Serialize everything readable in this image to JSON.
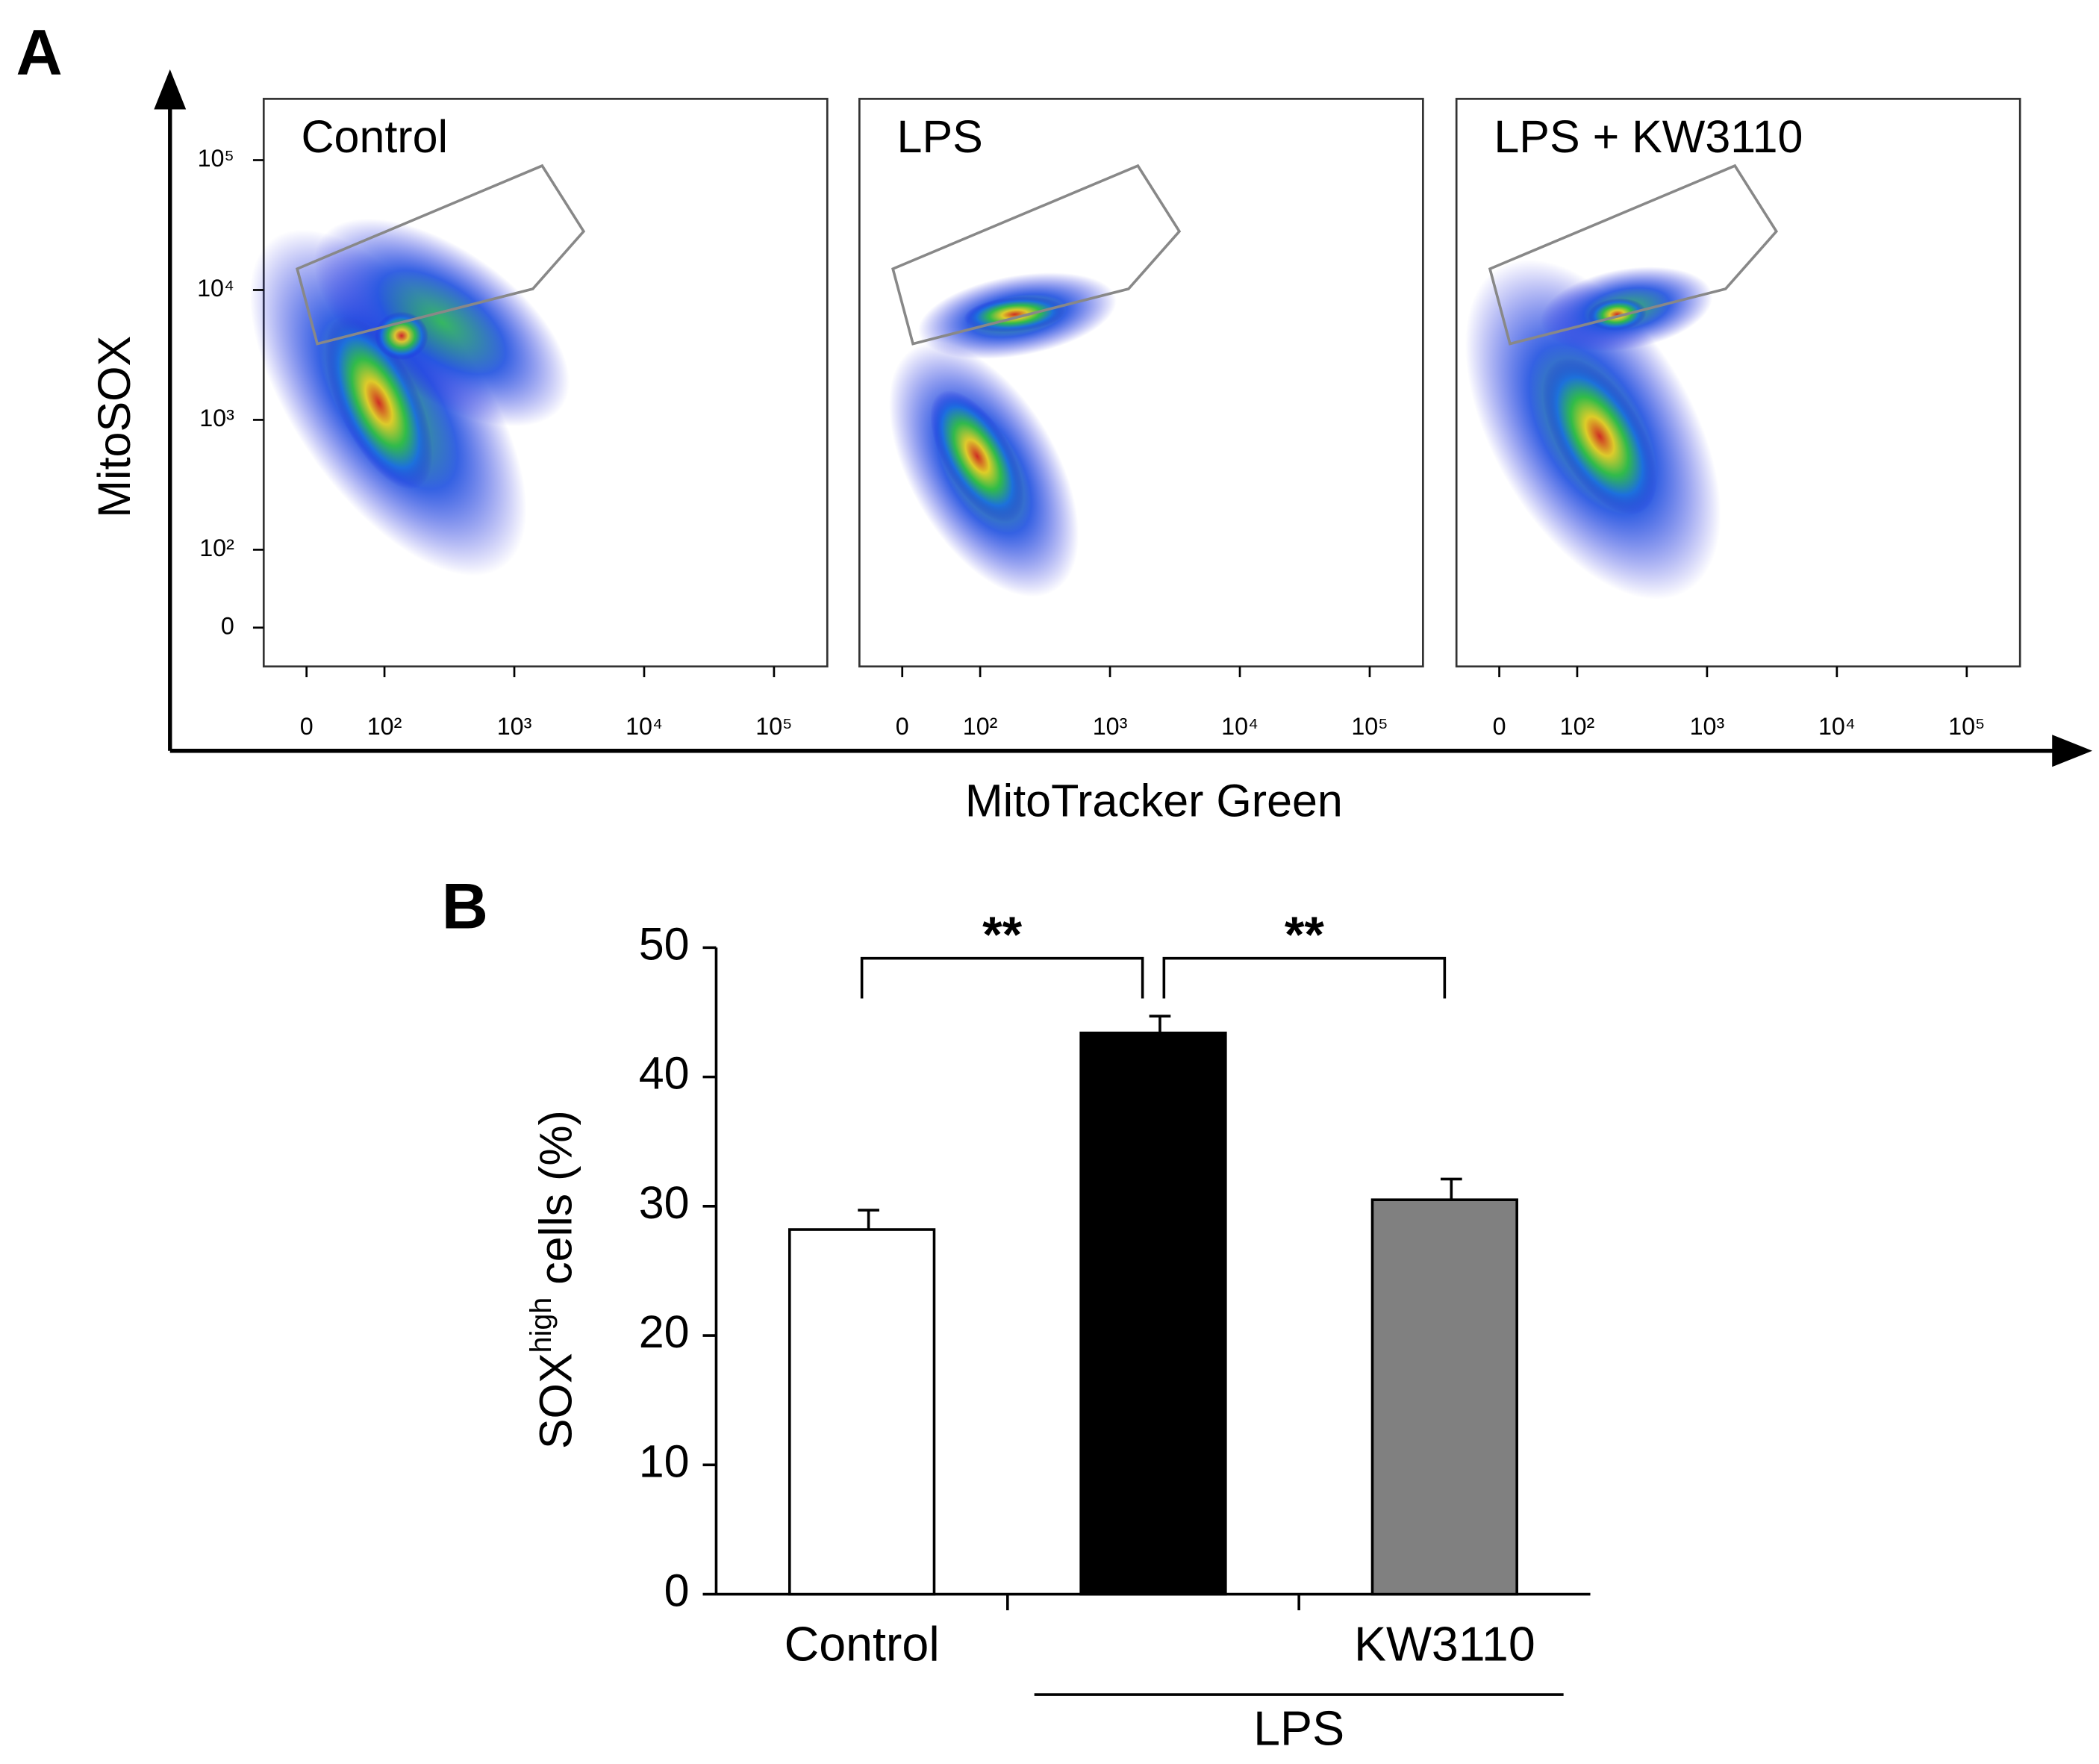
{
  "chart_data": [
    {
      "type": "flow",
      "panel_label": "A",
      "y_label": "MitoSOX",
      "x_label": "MitoTracker Green",
      "panels": [
        "Control",
        "LPS",
        "LPS + KW3110"
      ],
      "xticks": [
        {
          "value": 0,
          "label": "0"
        },
        {
          "value": 100,
          "label": "10²"
        },
        {
          "value": 1000,
          "label": "10³"
        },
        {
          "value": 10000,
          "label": "10⁴"
        },
        {
          "value": 100000,
          "label": "10⁵"
        }
      ],
      "yticks": [
        {
          "value": 0,
          "label": "0"
        },
        {
          "value": 100,
          "label": "10²"
        },
        {
          "value": 1000,
          "label": "10³"
        },
        {
          "value": 10000,
          "label": "10⁴"
        },
        {
          "value": 100000,
          "label": "10⁵"
        }
      ],
      "scale": "biexponential"
    },
    {
      "type": "bar",
      "panel_label": "B",
      "y_label": {
        "text": "SOX",
        "superscript": "high",
        "suffix": " cells (%)"
      },
      "categories": [
        "Control",
        null,
        "KW3110"
      ],
      "values": [
        28.2,
        43.4,
        30.5
      ],
      "errors": [
        1.5,
        1.3,
        1.6
      ],
      "colors": [
        "#ffffff",
        "#000000",
        "#808080"
      ],
      "ylim": [
        0,
        50
      ],
      "yticks": [
        0,
        10,
        20,
        30,
        40,
        50
      ],
      "group": {
        "label": "LPS",
        "from": 1,
        "to": 2
      },
      "annotations": [
        {
          "text": "**",
          "from": 0,
          "to": 1
        },
        {
          "text": "**",
          "from": 1,
          "to": 2
        }
      ]
    }
  ]
}
